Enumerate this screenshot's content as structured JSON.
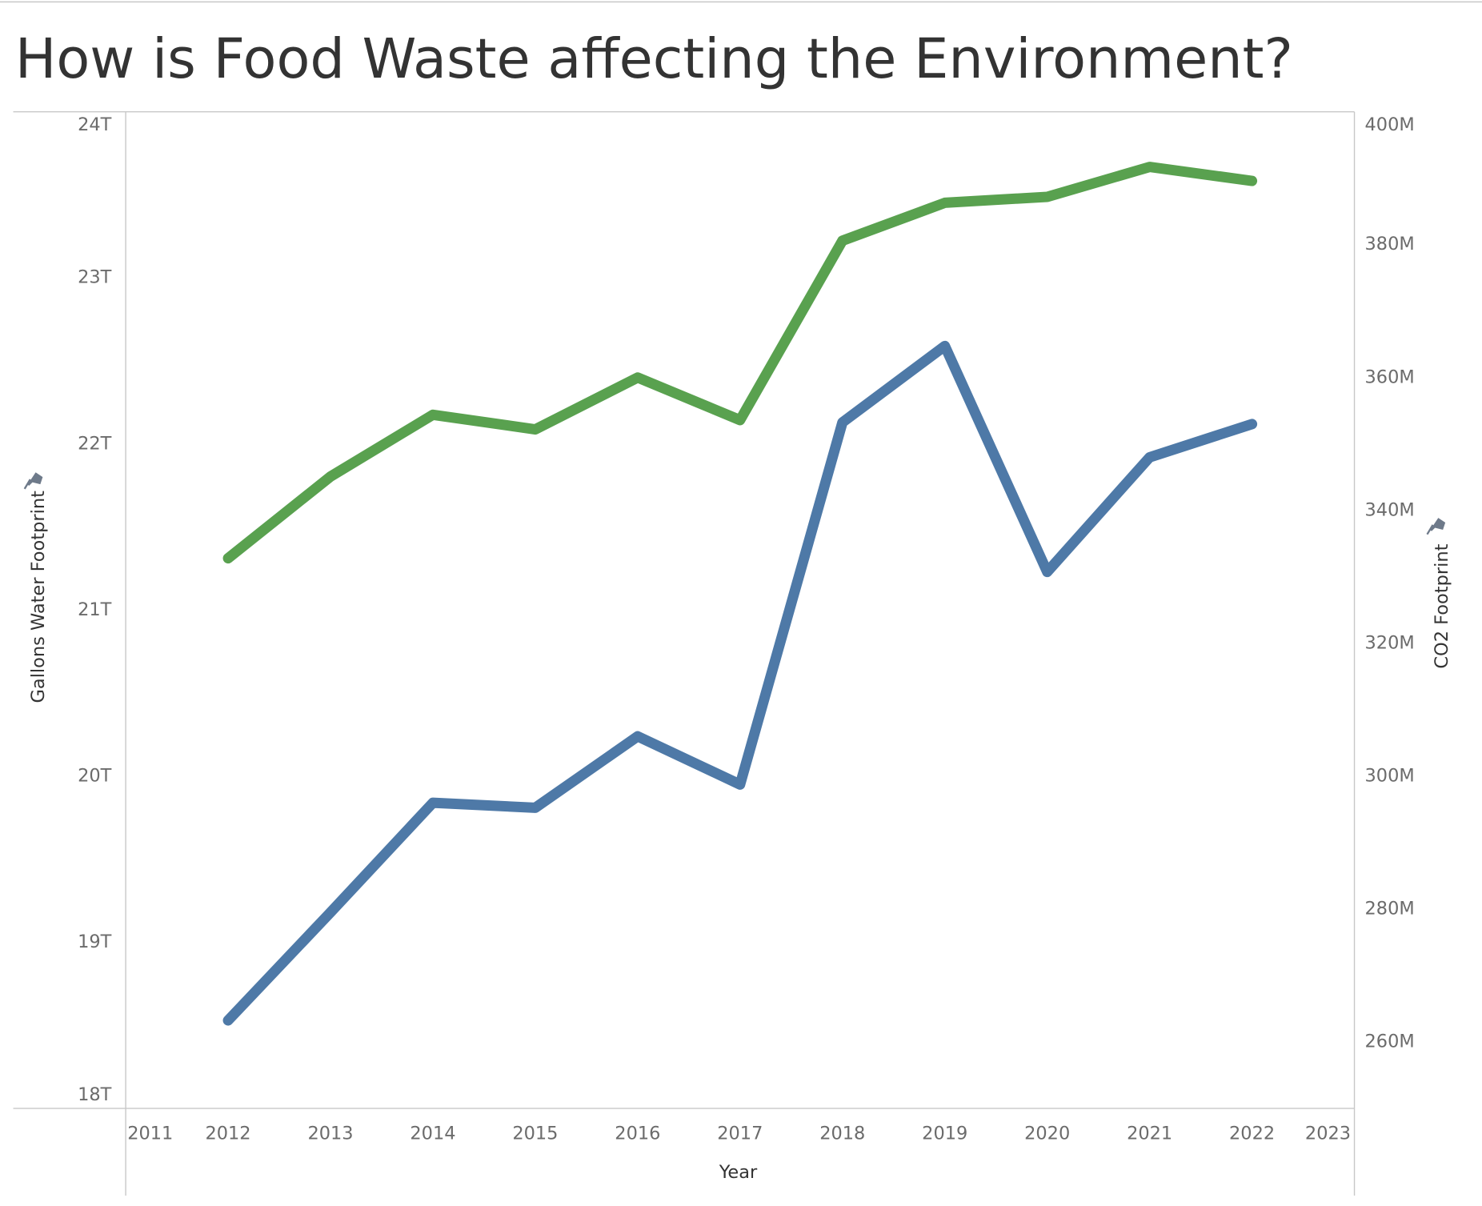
{
  "chart_data": {
    "type": "line",
    "title": "How is Food Waste affecting the Environment?",
    "xlabel": "Year",
    "ylabel": "Gallons Water Footprint",
    "y2label": "CO2 Footprint",
    "x": [
      2012,
      2013,
      2014,
      2015,
      2016,
      2017,
      2018,
      2019,
      2020,
      2021,
      2022
    ],
    "xlim": [
      2011,
      2023
    ],
    "xticks": [
      2011,
      2012,
      2013,
      2014,
      2015,
      2016,
      2017,
      2018,
      2019,
      2020,
      2021,
      2022,
      2023
    ],
    "ylim": [
      18000000000000,
      24000000000000
    ],
    "yticks": [
      {
        "value": 18000000000000,
        "label": "18T"
      },
      {
        "value": 19000000000000,
        "label": "19T"
      },
      {
        "value": 20000000000000,
        "label": "20T"
      },
      {
        "value": 21000000000000,
        "label": "21T"
      },
      {
        "value": 22000000000000,
        "label": "22T"
      },
      {
        "value": 23000000000000,
        "label": "23T"
      },
      {
        "value": 24000000000000,
        "label": "24T"
      }
    ],
    "y2lim": [
      250000000,
      400000000
    ],
    "y2ticks": [
      {
        "value": 260000000,
        "label": "260M"
      },
      {
        "value": 280000000,
        "label": "280M"
      },
      {
        "value": 300000000,
        "label": "300M"
      },
      {
        "value": 320000000,
        "label": "320M"
      },
      {
        "value": 340000000,
        "label": "340M"
      },
      {
        "value": 360000000,
        "label": "360M"
      },
      {
        "value": 380000000,
        "label": "380M"
      },
      {
        "value": 400000000,
        "label": "400M"
      }
    ],
    "grid": false,
    "series": [
      {
        "color": "#4e79a7",
        "axis": "y",
        "values": [
          18530000000000,
          19180000000000,
          19840000000000,
          19810000000000,
          20240000000000,
          19950000000000,
          22130000000000,
          22590000000000,
          21230000000000,
          21920000000000,
          22120000000000
        ]
      },
      {
        "color": "#59a14f",
        "axis": "y2",
        "values": [
          332800000,
          345100000,
          354400000,
          352200000,
          360000000,
          353600000,
          380600000,
          386300000,
          387200000,
          391700000,
          389600000
        ]
      }
    ]
  }
}
